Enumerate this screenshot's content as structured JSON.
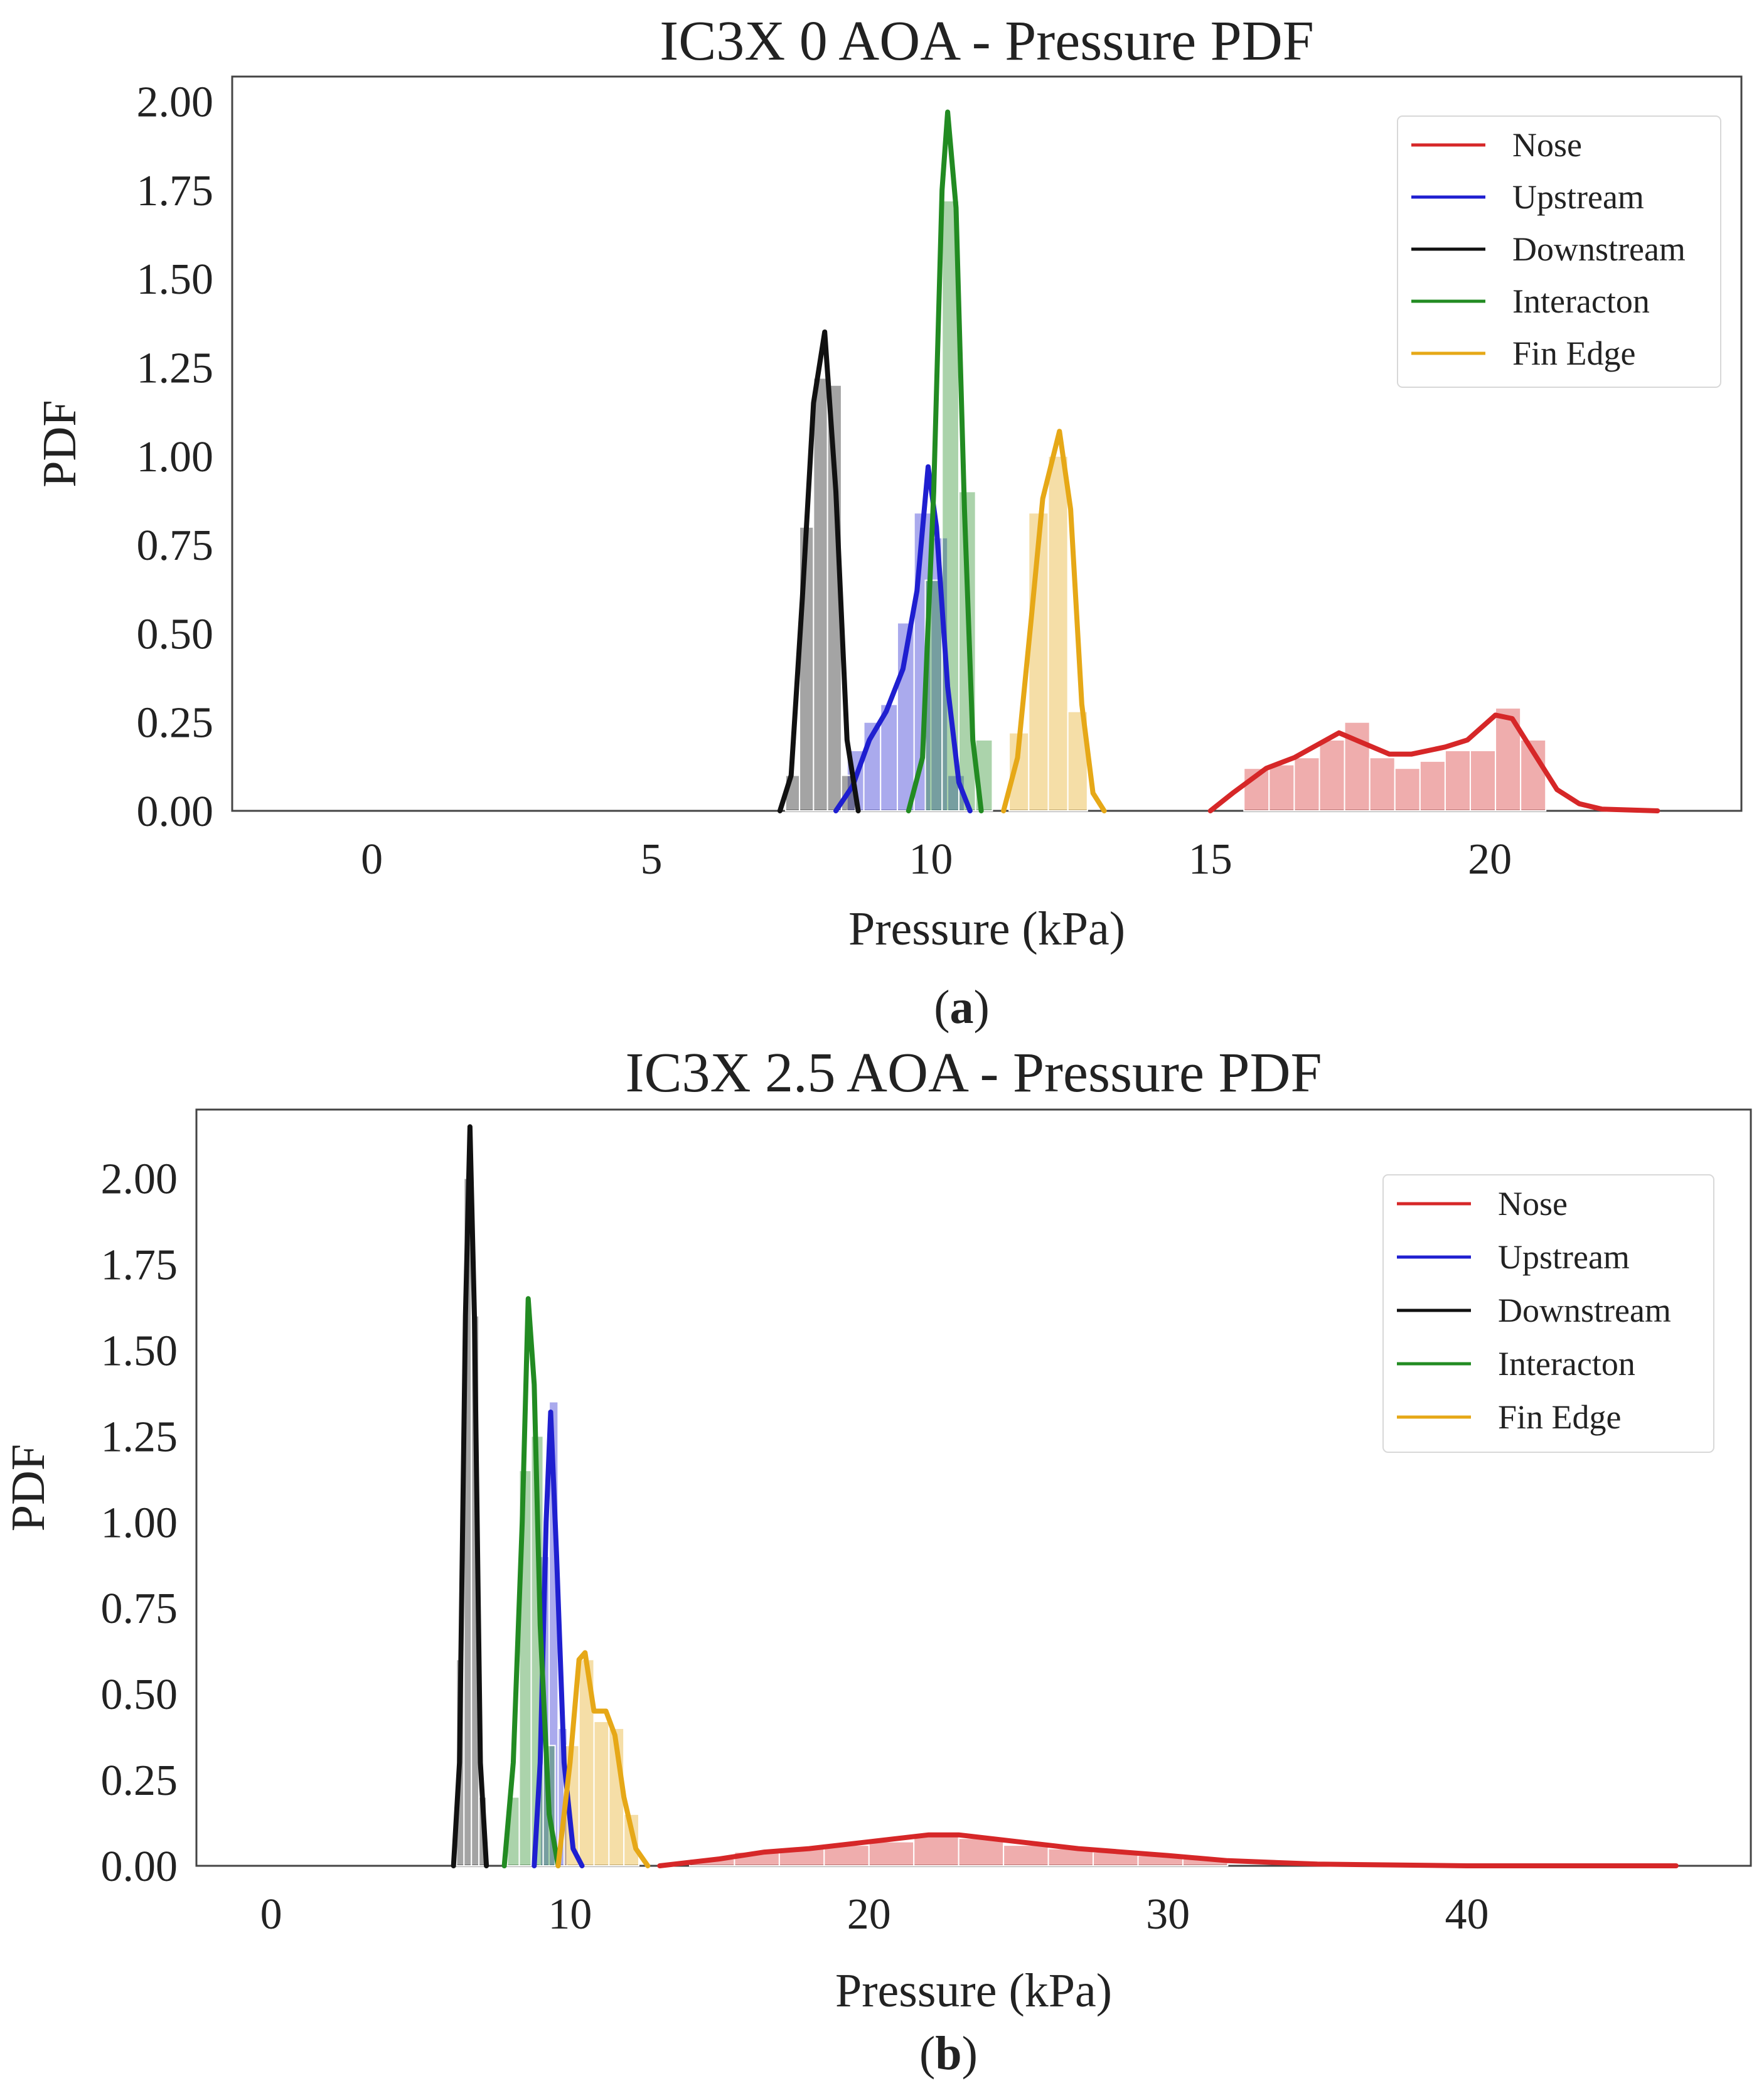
{
  "chart_data": [
    {
      "type": "area",
      "title": "IC3X 0 AOA - Pressure PDF",
      "panel_label": "(a)",
      "panel_letter": "a",
      "xlabel": "Pressure (kPa)",
      "ylabel": "PDF",
      "xlim": [
        -2.5,
        24.5
      ],
      "ylim": [
        0,
        2.07
      ],
      "xticks": [
        0,
        5,
        10,
        15,
        20
      ],
      "xtick_labels": [
        "0",
        "5",
        "10",
        "15",
        "20"
      ],
      "yticks": [
        0,
        0.25,
        0.5,
        0.75,
        1.0,
        1.25,
        1.5,
        1.75,
        2.0
      ],
      "ytick_labels": [
        "0.00",
        "0.25",
        "0.50",
        "0.75",
        "1.00",
        "1.25",
        "1.50",
        "1.75",
        "2.00"
      ],
      "grid": false,
      "legend_position": "top-right",
      "series": [
        {
          "name": "Nose",
          "color": "#d62728",
          "curve": [
            [
              15.0,
              0
            ],
            [
              15.4,
              0.05
            ],
            [
              16.0,
              0.12
            ],
            [
              16.5,
              0.15
            ],
            [
              17.3,
              0.22
            ],
            [
              17.6,
              0.2
            ],
            [
              18.2,
              0.16
            ],
            [
              18.6,
              0.16
            ],
            [
              19.2,
              0.18
            ],
            [
              19.6,
              0.2
            ],
            [
              20.1,
              0.27
            ],
            [
              20.4,
              0.26
            ],
            [
              20.8,
              0.16
            ],
            [
              21.2,
              0.06
            ],
            [
              21.6,
              0.02
            ],
            [
              22.0,
              0.005
            ],
            [
              23.0,
              0
            ]
          ],
          "bins": [
            [
              15.6,
              16.05,
              0.12
            ],
            [
              16.05,
              16.5,
              0.13
            ],
            [
              16.5,
              16.95,
              0.15
            ],
            [
              16.95,
              17.4,
              0.2
            ],
            [
              17.4,
              17.85,
              0.25
            ],
            [
              17.85,
              18.3,
              0.15
            ],
            [
              18.3,
              18.75,
              0.12
            ],
            [
              18.75,
              19.2,
              0.14
            ],
            [
              19.2,
              19.65,
              0.17
            ],
            [
              19.65,
              20.1,
              0.17
            ],
            [
              20.1,
              20.55,
              0.29
            ],
            [
              20.55,
              21.0,
              0.2
            ]
          ]
        },
        {
          "name": "Upstream",
          "color": "#1f1fd0",
          "curve": [
            [
              8.3,
              0
            ],
            [
              8.6,
              0.07
            ],
            [
              8.9,
              0.2
            ],
            [
              9.2,
              0.28
            ],
            [
              9.5,
              0.4
            ],
            [
              9.75,
              0.62
            ],
            [
              9.95,
              0.97
            ],
            [
              10.1,
              0.8
            ],
            [
              10.3,
              0.35
            ],
            [
              10.5,
              0.08
            ],
            [
              10.7,
              0
            ]
          ],
          "bins": [
            [
              8.5,
              8.8,
              0.17
            ],
            [
              8.8,
              9.1,
              0.25
            ],
            [
              9.1,
              9.4,
              0.3
            ],
            [
              9.4,
              9.7,
              0.53
            ],
            [
              9.7,
              10.0,
              0.84
            ],
            [
              10.0,
              10.3,
              0.77
            ],
            [
              10.3,
              10.6,
              0.1
            ]
          ]
        },
        {
          "name": "Downstream",
          "color": "#111111",
          "curve": [
            [
              7.3,
              0
            ],
            [
              7.5,
              0.1
            ],
            [
              7.7,
              0.6
            ],
            [
              7.9,
              1.15
            ],
            [
              8.1,
              1.35
            ],
            [
              8.3,
              0.9
            ],
            [
              8.5,
              0.2
            ],
            [
              8.7,
              0
            ]
          ],
          "bins": [
            [
              7.4,
              7.65,
              0.1
            ],
            [
              7.65,
              7.9,
              0.8
            ],
            [
              7.9,
              8.15,
              1.22
            ],
            [
              8.15,
              8.4,
              1.2
            ],
            [
              8.4,
              8.65,
              0.1
            ]
          ]
        },
        {
          "name": "Interacton",
          "color": "#228b22",
          "curve": [
            [
              9.6,
              0
            ],
            [
              9.85,
              0.15
            ],
            [
              10.05,
              0.9
            ],
            [
              10.2,
              1.75
            ],
            [
              10.3,
              1.97
            ],
            [
              10.45,
              1.7
            ],
            [
              10.6,
              0.85
            ],
            [
              10.75,
              0.2
            ],
            [
              10.9,
              0
            ]
          ],
          "bins": [
            [
              9.9,
              10.2,
              0.65
            ],
            [
              10.2,
              10.5,
              1.72
            ],
            [
              10.5,
              10.8,
              0.9
            ],
            [
              10.8,
              11.1,
              0.2
            ]
          ]
        },
        {
          "name": "Fin Edge",
          "color": "#e6a817",
          "curve": [
            [
              11.3,
              0
            ],
            [
              11.55,
              0.15
            ],
            [
              11.8,
              0.55
            ],
            [
              12.0,
              0.88
            ],
            [
              12.3,
              1.07
            ],
            [
              12.5,
              0.85
            ],
            [
              12.7,
              0.3
            ],
            [
              12.9,
              0.05
            ],
            [
              13.1,
              0
            ]
          ],
          "bins": [
            [
              11.4,
              11.75,
              0.22
            ],
            [
              11.75,
              12.1,
              0.84
            ],
            [
              12.1,
              12.45,
              1.0
            ],
            [
              12.45,
              12.8,
              0.28
            ]
          ]
        }
      ]
    },
    {
      "type": "area",
      "title": "IC3X 2.5 AOA - Pressure PDF",
      "panel_label": "(b)",
      "panel_letter": "b",
      "xlabel": "Pressure (kPa)",
      "ylabel": "PDF",
      "xlim": [
        -2.5,
        49.5
      ],
      "ylim": [
        0,
        2.2
      ],
      "xticks": [
        0,
        10,
        20,
        30,
        40
      ],
      "xtick_labels": [
        "0",
        "10",
        "20",
        "30",
        "40"
      ],
      "yticks": [
        0,
        0.25,
        0.5,
        0.75,
        1.0,
        1.25,
        1.5,
        1.75,
        2.0
      ],
      "ytick_labels": [
        "0.00",
        "0.25",
        "0.50",
        "0.75",
        "1.00",
        "1.25",
        "1.50",
        "1.75",
        "2.00"
      ],
      "grid": false,
      "legend_position": "top-right",
      "series": [
        {
          "name": "Nose",
          "color": "#d62728",
          "curve": [
            [
              13.0,
              0
            ],
            [
              15.0,
              0.02
            ],
            [
              16.5,
              0.04
            ],
            [
              18.0,
              0.05
            ],
            [
              20.0,
              0.07
            ],
            [
              22.0,
              0.09
            ],
            [
              23.0,
              0.09
            ],
            [
              25.0,
              0.07
            ],
            [
              27.0,
              0.05
            ],
            [
              30.0,
              0.03
            ],
            [
              32.0,
              0.015
            ],
            [
              35.0,
              0.005
            ],
            [
              40.0,
              0
            ],
            [
              47.0,
              0
            ]
          ],
          "bins": [
            [
              14.0,
              15.5,
              0.02
            ],
            [
              15.5,
              17.0,
              0.04
            ],
            [
              17.0,
              18.5,
              0.05
            ],
            [
              18.5,
              20.0,
              0.06
            ],
            [
              20.0,
              21.5,
              0.07
            ],
            [
              21.5,
              23.0,
              0.09
            ],
            [
              23.0,
              24.5,
              0.08
            ],
            [
              24.5,
              26.0,
              0.06
            ],
            [
              26.0,
              27.5,
              0.05
            ],
            [
              27.5,
              29.0,
              0.04
            ],
            [
              29.0,
              30.5,
              0.03
            ],
            [
              30.5,
              32.0,
              0.02
            ]
          ]
        },
        {
          "name": "Upstream",
          "color": "#1f1fd0",
          "curve": [
            [
              8.8,
              0
            ],
            [
              9.0,
              0.3
            ],
            [
              9.2,
              1.0
            ],
            [
              9.35,
              1.32
            ],
            [
              9.55,
              0.9
            ],
            [
              9.8,
              0.3
            ],
            [
              10.1,
              0.05
            ],
            [
              10.4,
              0
            ]
          ],
          "bins": [
            [
              9.0,
              9.3,
              0.9
            ],
            [
              9.3,
              9.6,
              1.35
            ],
            [
              9.6,
              9.9,
              0.4
            ]
          ]
        },
        {
          "name": "Downstream",
          "color": "#111111",
          "curve": [
            [
              6.1,
              0
            ],
            [
              6.3,
              0.3
            ],
            [
              6.5,
              1.6
            ],
            [
              6.65,
              2.15
            ],
            [
              6.8,
              1.6
            ],
            [
              7.0,
              0.3
            ],
            [
              7.2,
              0
            ]
          ],
          "bins": [
            [
              6.2,
              6.45,
              0.6
            ],
            [
              6.45,
              6.7,
              2.0
            ],
            [
              6.7,
              6.95,
              1.6
            ],
            [
              6.95,
              7.2,
              0.2
            ]
          ]
        },
        {
          "name": "Interacton",
          "color": "#228b22",
          "curve": [
            [
              7.8,
              0
            ],
            [
              8.1,
              0.3
            ],
            [
              8.4,
              1.0
            ],
            [
              8.6,
              1.65
            ],
            [
              8.8,
              1.4
            ],
            [
              9.0,
              0.7
            ],
            [
              9.3,
              0.15
            ],
            [
              9.6,
              0
            ]
          ],
          "bins": [
            [
              7.9,
              8.3,
              0.2
            ],
            [
              8.3,
              8.7,
              1.15
            ],
            [
              8.7,
              9.1,
              1.25
            ],
            [
              9.1,
              9.5,
              0.35
            ]
          ]
        },
        {
          "name": "Fin Edge",
          "color": "#e6a817",
          "curve": [
            [
              9.6,
              0
            ],
            [
              10.0,
              0.3
            ],
            [
              10.3,
              0.6
            ],
            [
              10.5,
              0.62
            ],
            [
              10.8,
              0.45
            ],
            [
              11.2,
              0.45
            ],
            [
              11.5,
              0.38
            ],
            [
              11.8,
              0.2
            ],
            [
              12.2,
              0.05
            ],
            [
              12.6,
              0
            ]
          ],
          "bins": [
            [
              9.8,
              10.3,
              0.35
            ],
            [
              10.3,
              10.8,
              0.6
            ],
            [
              10.8,
              11.3,
              0.42
            ],
            [
              11.3,
              11.8,
              0.4
            ],
            [
              11.8,
              12.3,
              0.15
            ]
          ]
        }
      ]
    }
  ]
}
